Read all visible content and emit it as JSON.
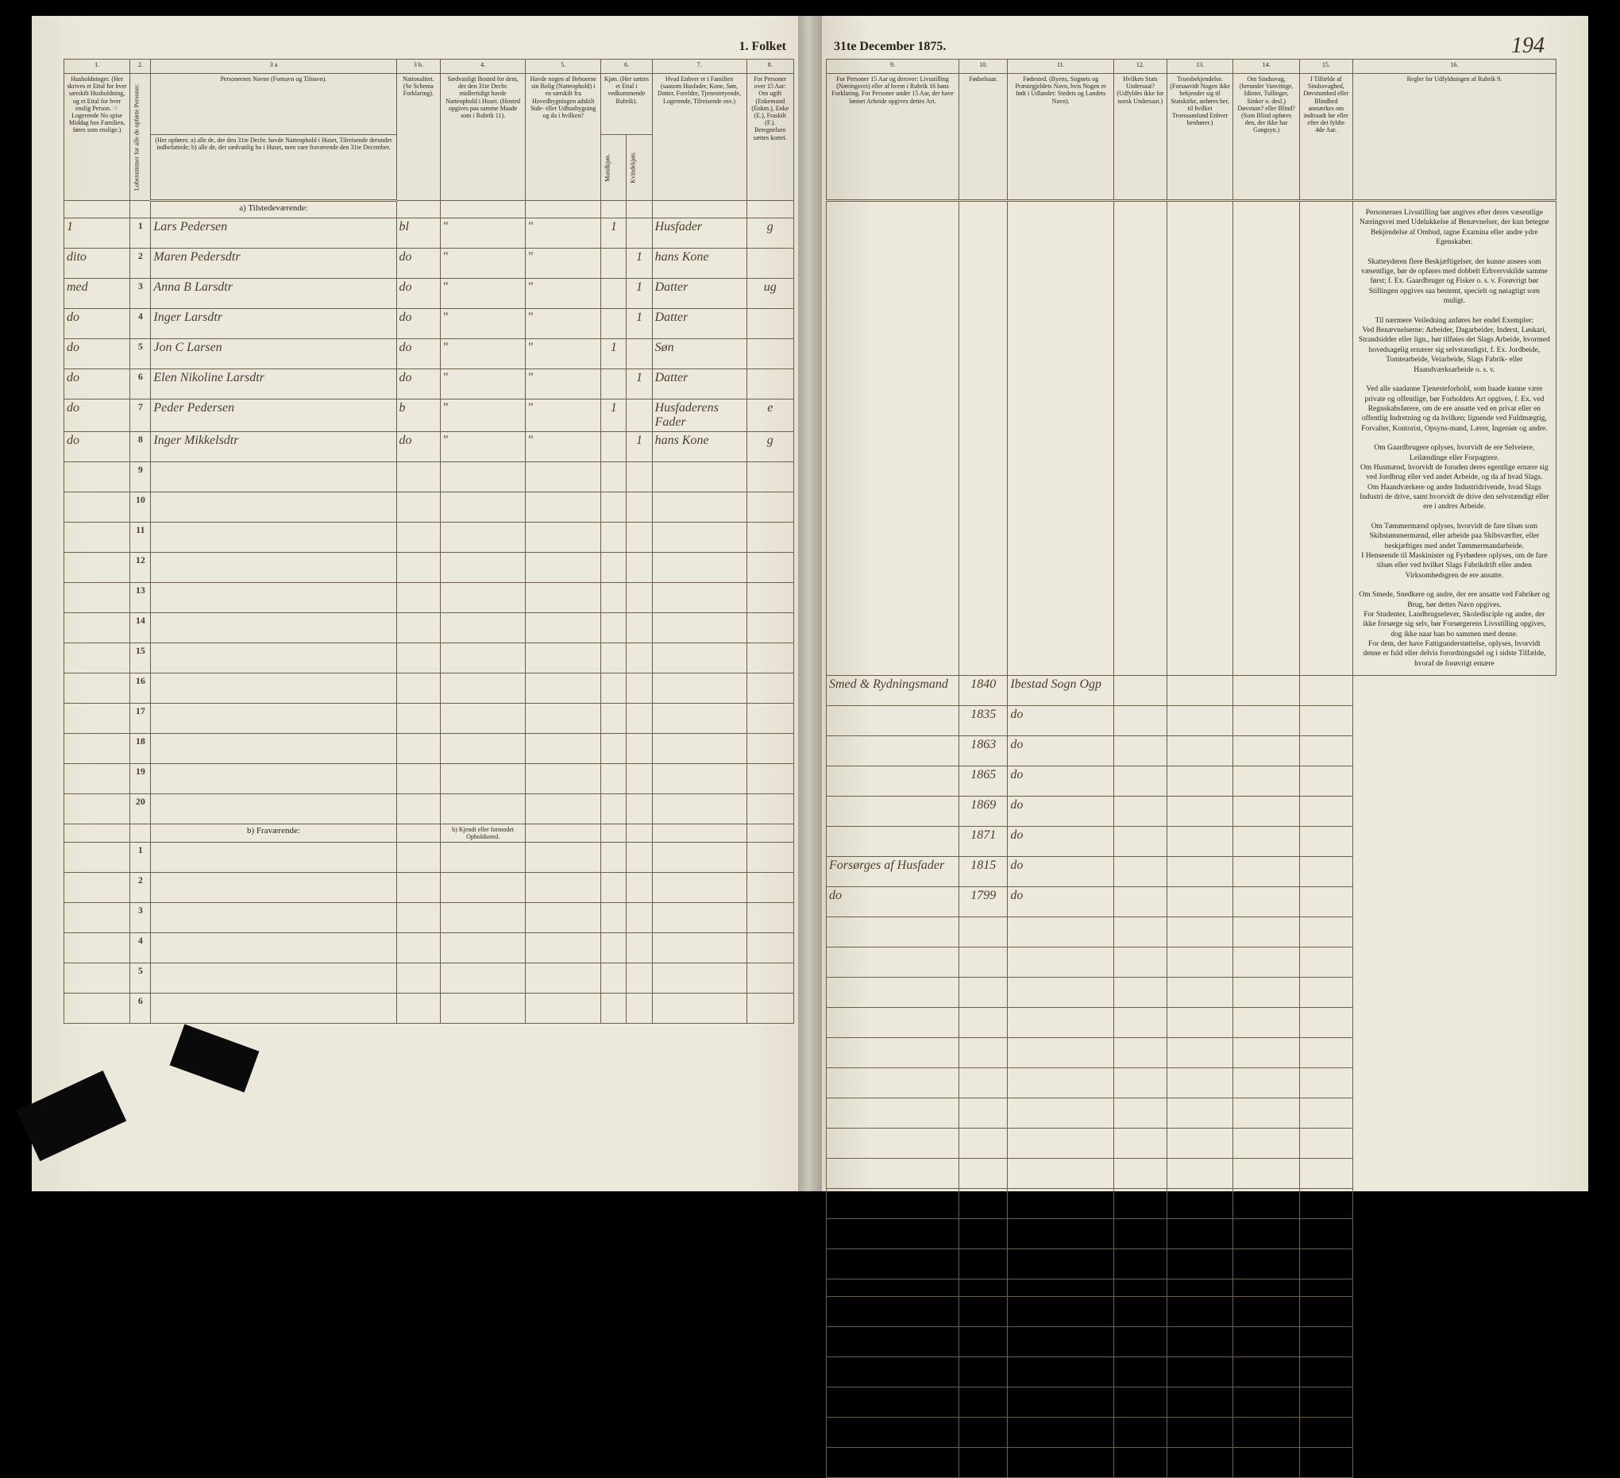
{
  "header": {
    "title_left": "1. Folket",
    "title_right": "31te December 1875.",
    "page_number": "194"
  },
  "columns_left": {
    "c1": "1.",
    "c2": "2.",
    "c3a": "3 a",
    "c3b": "3 b.",
    "c4": "4.",
    "c5": "5.",
    "c6": "6.",
    "c7": "7.",
    "c8": "8.",
    "h1": "Husholdninger.\n(Her skrives et Ettal for hver særskilt Husholdning, og et Ettal for hver enslig Person.\n☞ Logerende No spise Middag hos Familien, føres som enslige.)",
    "h2": "Lobenummer for alle de opførte Personer.",
    "h3a_title": "Personernes Navne (Fornavn og Tilnavn).",
    "h3a_sub": "(Her opføres:\na) alle de, der den 31te Decbr. havde Natteophold i Huset, Tilreisende derunder indbefattede;\nb) alle de, der sædvanlig bo i Huset, men vare fraværende den 31te December.",
    "h3b": "Nationalitet.\n(Se Schema Forklaring).",
    "h4": "Sædvanligt Bosted for dem, der den 31te Decbr. midlertidigt havde Natteophold i Huset.\n(Hosted opgives paa samme Maade som i Rubrik 11).",
    "h5": "Havde nogen af Beboerne sin Bolig (Natteophold) i en særskilt fra Hovedbygningen adskilt Side- eller Udhusbygning og da i hvilken?",
    "h6": "Kjøn.\n(Her sættes et Ettal i vedkommende Rubrik).",
    "h6m": "Mandkjøn.",
    "h6k": "Kvindekjøn.",
    "h7": "Hvad Enhver er i Familien (saasom Husfader, Kone, Søn, Datter, Foreldre, Tjenestetyende, Logerende, Tilreisende osv.)",
    "h8": "For Personer over 15 Aar: Om ugift (Enkemand (Enkm.), Enke (E.), Fraskilt (F.). Betegnelsen sættes kortet."
  },
  "columns_right": {
    "c9": "9.",
    "c10": "10.",
    "c11": "11.",
    "c12": "12.",
    "c13": "13.",
    "c14": "14.",
    "c15": "15.",
    "c16": "16.",
    "h9": "For Personer 15 Aar og derover: Livsstilling (Næringsvei) eller af hvem i Rubrik 16 hans Forklaring.\nFor Personer under 15 Aar, der have lønnet Arbeide opgives dettes Art.",
    "h10": "Fødselsaar.",
    "h11": "Fødested.\n(Byens, Sognets og Præstegjeldets Navn, hvis Nogen er født i Udlandet: Stedets og Landets Navn).",
    "h12": "Hvilken Stats Undersaat?\n(Udfyldes ikke for norsk Undersaat.)",
    "h13": "Troesbekjendelse.\n(Forsaavidt Nogen ikke bekjender sig til Statskirke, anføres her, til hvilket Troessamfund Enhver henhører.)",
    "h14": "Om Sindssvag, (herunder Vanvittige, Idioter, Tullinger, Sinker o. desl.)\nDøvstum? eller Blind?\n(Som Blind opføres den, der ikke har Gangsyn.)",
    "h15": "I Tilfælde af Sindssvaghed, Døvstumhed eller Blindhed anmærkes om indtraadt før eller efter det fyldte 4de Aar.",
    "h16": "Regler for Udfyldningen af Rubrik 9."
  },
  "sections": {
    "a": "a) Tilstedeværende:",
    "b": "b) Fraværende:",
    "b_note": "b) Kjendt eller formodet Opholdssted."
  },
  "rows": [
    {
      "hh": "1",
      "n": "1",
      "name": "Lars Pedersen",
      "nat": "bl",
      "sex": "1",
      "sexcol": "m",
      "rel": "Husfader",
      "civ": "g",
      "occ": "Smed & Rydningsmand",
      "year": "1840",
      "place": "Ibestad Sogn Ogp",
      "p2": ""
    },
    {
      "hh": "dito",
      "n": "2",
      "name": "Maren Pedersdtr",
      "nat": "do",
      "sex": "1",
      "sexcol": "k",
      "rel": "hans Kone",
      "civ": "",
      "occ": "",
      "year": "1835",
      "place": "do",
      "p2": ""
    },
    {
      "hh": "med",
      "n": "3",
      "name": "Anna B Larsdtr",
      "nat": "do",
      "sex": "1",
      "sexcol": "k",
      "rel": "Datter",
      "civ": "ug",
      "occ": "",
      "year": "1863",
      "place": "do",
      "p2": ""
    },
    {
      "hh": "do",
      "n": "4",
      "name": "Inger Larsdtr",
      "nat": "do",
      "sex": "1",
      "sexcol": "k",
      "rel": "Datter",
      "civ": "",
      "occ": "",
      "year": "1865",
      "place": "do",
      "p2": ""
    },
    {
      "hh": "do",
      "n": "5",
      "name": "Jon C Larsen",
      "nat": "do",
      "sex": "1",
      "sexcol": "m",
      "rel": "Søn",
      "civ": "",
      "occ": "",
      "year": "1869",
      "place": "do",
      "p2": ""
    },
    {
      "hh": "do",
      "n": "6",
      "name": "Elen Nikoline Larsdtr",
      "nat": "do",
      "sex": "1",
      "sexcol": "k",
      "rel": "Datter",
      "civ": "",
      "occ": "",
      "year": "1871",
      "place": "do",
      "p2": ""
    },
    {
      "hh": "do",
      "n": "7",
      "name": "Peder Pedersen",
      "nat": "b",
      "sex": "1",
      "sexcol": "m",
      "rel": "Husfaderens Fader",
      "civ": "e",
      "occ": "Forsørges af Husfader",
      "year": "1815",
      "place": "do",
      "p2": ""
    },
    {
      "hh": "do",
      "n": "8",
      "name": "Inger Mikkelsdtr",
      "nat": "do",
      "sex": "1",
      "sexcol": "k",
      "rel": "hans Kone",
      "civ": "g",
      "occ": "do",
      "year": "1799",
      "place": "do",
      "p2": ""
    }
  ],
  "empty_a": [
    "9",
    "10",
    "11",
    "12",
    "13",
    "14",
    "15",
    "16",
    "17",
    "18",
    "19",
    "20"
  ],
  "empty_b": [
    "1",
    "2",
    "3",
    "4",
    "5",
    "6"
  ],
  "rules_text": {
    "p1": "Personernes Livsstilling bør angives efter deres væsentlige Næringsvei med Udelukkelse af Benævnelser, der kun betegne Bekjendelse af Ombud, tagne Examina eller andre ydre Egenskaber.",
    "p2": "Skatteyderen flere Beskjæftigelser, der kunne ansees som væsentlige, bør de opføres med dobbelt Erhvervskilde samme først; f. Ex. Gaardbruger og Fisker o. s. v. Forøvrigt bør Stillingen opgives saa bestemt, specielt og nøiagtigt som muligt.",
    "p3": "Til nærmere Veiledning anføres her endel Exempler:",
    "p4": "Ved Benævnelserne: Arbeider, Dagarbeider, Inderst, Løskari, Strandsidder eller lign., bør tilføies det Slags Arbeide, hvormed hovedsagelig ernærer sig selvstændigst, f. Ex. Jordbeide, Tomtearbeide, Veiarbeide, Slags Fabrik- eller Haandværksarbeide o. s. v.",
    "p5": "Ved alle saadanne Tjenesteforhold, som baade kunne være private og offentlige, bør Forholdets Art opgives, f. Ex. ved Regnskabsførere, om de ere ansatte ved en privat eller en offentlig Indretning og da hvilken; lignende ved Fuldmægtig, Forvalter, Kontorist, Opsyns-mand, Lærer, Ingeniør og andre.",
    "p6": "Om Gaardbrugere oplyses, hvorvidt de ere Selveiere, Leilændinge eller Forpagtere.",
    "p7": "Om Husmænd, hvorvidt de foruden deres egentlige ernære sig ved Jordbrug eller ved andet Arbeide, og da af hvad Slags.",
    "p8": "Om Haandværkere og andre Industridrivende, hvad Slags Industri de drive, samt hvorvidt de drive den selvstændigt eller ere i andres Arbeide.",
    "p9": "Om Tømmermænd oplyses, hvorvidt de fare tilsøs som Skibstømmermænd, eller arbeide paa Skibsværfter, eller beskjæftiges med andet Tømmermandarbeide.",
    "p10": "I Henseende til Maskinister og Fyrbødere oplyses, om de fare tilsøs eller ved hvilket Slags Fabrikdrift eller anden Virksomhedsgren de ere ansatte.",
    "p11": "Om Smede, Snedkere og andre, der ere ansatte ved Fabriker og Brug, bør dettes Navn opgives.",
    "p12": "For Studenter, Landbrugselever, Skoledisciple og andre, der ikke forsørge sig selv, bør Forsørgerens Livsstilling opgives, dog ikke naar han bo sammen med denne.",
    "p13": "For dem, der have Fattigunderstøttelse, oplyses, hvorvidt denne er fuld eller delvis forordningsdel og i sidste Tilfælde, hvoraf de forøvrigt ernære"
  },
  "colors": {
    "paper": "#ece8dc",
    "ink": "#2a2418",
    "cursive": "#4a3e2a",
    "border": "#6a5f48"
  }
}
